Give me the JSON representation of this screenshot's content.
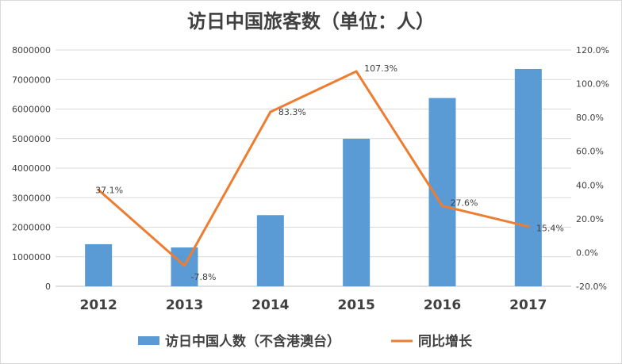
{
  "chart_data": {
    "type": "bar+line",
    "title": "访日中国旅客数（单位：人）",
    "categories": [
      "2012",
      "2013",
      "2014",
      "2015",
      "2016",
      "2017"
    ],
    "series": [
      {
        "name": "访日中国人数（不含港澳台）",
        "type": "bar",
        "axis": "left",
        "color": "#5B9BD5",
        "values": [
          1425100,
          1314437,
          2409158,
          4993689,
          6373564,
          7355818
        ]
      },
      {
        "name": "同比增长",
        "type": "line",
        "axis": "right",
        "color": "#ED7D31",
        "values": [
          37.1,
          -7.8,
          83.3,
          107.3,
          27.6,
          15.4
        ],
        "labels": [
          "37.1%",
          "-7.8%",
          "83.3%",
          "107.3%",
          "27.6%",
          "15.4%"
        ]
      }
    ],
    "left_axis": {
      "ylim": [
        0,
        8000000
      ],
      "ticks": [
        "0",
        "1000000",
        "2000000",
        "3000000",
        "4000000",
        "5000000",
        "6000000",
        "7000000",
        "8000000"
      ]
    },
    "right_axis": {
      "ylim": [
        -20,
        120
      ],
      "ticks": [
        "-20.0%",
        "0.0%",
        "20.0%",
        "40.0%",
        "60.0%",
        "80.0%",
        "100.0%",
        "120.0%"
      ]
    },
    "grid": true,
    "legend": "bottom"
  }
}
